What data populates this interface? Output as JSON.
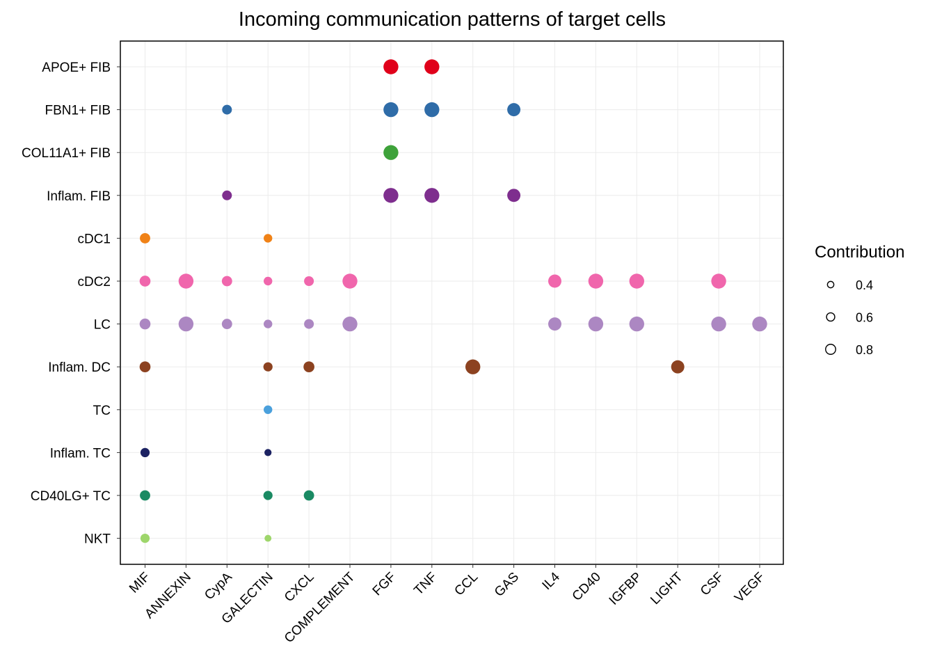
{
  "chart_data": {
    "type": "scatter",
    "title": "Incoming communication patterns of target cells",
    "x_categories": [
      "MIF",
      "ANNEXIN",
      "CypA",
      "GALECTIN",
      "CXCL",
      "COMPLEMENT",
      "FGF",
      "TNF",
      "CCL",
      "GAS",
      "IL4",
      "CD40",
      "IGFBP",
      "LIGHT",
      "CSF",
      "VEGF"
    ],
    "y_categories": [
      "APOE+ FIB",
      "FBN1+ FIB",
      "COL11A1+ FIB",
      "Inflam. FIB",
      "cDC1",
      "cDC2",
      "LC",
      "Inflam. DC",
      "TC",
      "Inflam. TC",
      "CD40LG+ TC",
      "NKT"
    ],
    "row_colors": {
      "APOE+ FIB": "#E0001A",
      "FBN1+ FIB": "#2F6CA8",
      "COL11A1+ FIB": "#3EA23A",
      "Inflam. FIB": "#7E2E8E",
      "cDC1": "#F08217",
      "cDC2": "#F066AC",
      "LC": "#AC87C2",
      "Inflam. DC": "#8C4220",
      "TC": "#4AA0DC",
      "Inflam. TC": "#1C2262",
      "CD40LG+ TC": "#1A8A63",
      "NKT": "#9ED66B"
    },
    "size_legend": {
      "title": "Contribution",
      "breaks": [
        0.4,
        0.6,
        0.8
      ],
      "labels": [
        "0.4",
        "0.6",
        "0.8"
      ]
    },
    "points": [
      {
        "x": "FGF",
        "y": "APOE+ FIB",
        "contribution": 1.0
      },
      {
        "x": "TNF",
        "y": "APOE+ FIB",
        "contribution": 1.0
      },
      {
        "x": "CypA",
        "y": "FBN1+ FIB",
        "contribution": 0.55
      },
      {
        "x": "FGF",
        "y": "FBN1+ FIB",
        "contribution": 1.0
      },
      {
        "x": "TNF",
        "y": "FBN1+ FIB",
        "contribution": 1.0
      },
      {
        "x": "GAS",
        "y": "FBN1+ FIB",
        "contribution": 0.85
      },
      {
        "x": "FGF",
        "y": "COL11A1+ FIB",
        "contribution": 1.0
      },
      {
        "x": "CypA",
        "y": "Inflam. FIB",
        "contribution": 0.55
      },
      {
        "x": "FGF",
        "y": "Inflam. FIB",
        "contribution": 1.0
      },
      {
        "x": "TNF",
        "y": "Inflam. FIB",
        "contribution": 1.0
      },
      {
        "x": "GAS",
        "y": "Inflam. FIB",
        "contribution": 0.85
      },
      {
        "x": "MIF",
        "y": "cDC1",
        "contribution": 0.6
      },
      {
        "x": "GALECTIN",
        "y": "cDC1",
        "contribution": 0.45
      },
      {
        "x": "MIF",
        "y": "cDC2",
        "contribution": 0.65
      },
      {
        "x": "ANNEXIN",
        "y": "cDC2",
        "contribution": 1.0
      },
      {
        "x": "CypA",
        "y": "cDC2",
        "contribution": 0.6
      },
      {
        "x": "GALECTIN",
        "y": "cDC2",
        "contribution": 0.45
      },
      {
        "x": "CXCL",
        "y": "cDC2",
        "contribution": 0.55
      },
      {
        "x": "COMPLEMENT",
        "y": "cDC2",
        "contribution": 1.0
      },
      {
        "x": "IL4",
        "y": "cDC2",
        "contribution": 0.85
      },
      {
        "x": "CD40",
        "y": "cDC2",
        "contribution": 1.0
      },
      {
        "x": "IGFBP",
        "y": "cDC2",
        "contribution": 1.0
      },
      {
        "x": "CSF",
        "y": "cDC2",
        "contribution": 1.0
      },
      {
        "x": "MIF",
        "y": "LC",
        "contribution": 0.65
      },
      {
        "x": "ANNEXIN",
        "y": "LC",
        "contribution": 1.0
      },
      {
        "x": "CypA",
        "y": "LC",
        "contribution": 0.6
      },
      {
        "x": "GALECTIN",
        "y": "LC",
        "contribution": 0.45
      },
      {
        "x": "CXCL",
        "y": "LC",
        "contribution": 0.55
      },
      {
        "x": "COMPLEMENT",
        "y": "LC",
        "contribution": 1.0
      },
      {
        "x": "IL4",
        "y": "LC",
        "contribution": 0.85
      },
      {
        "x": "CD40",
        "y": "LC",
        "contribution": 1.0
      },
      {
        "x": "IGFBP",
        "y": "LC",
        "contribution": 1.0
      },
      {
        "x": "CSF",
        "y": "LC",
        "contribution": 1.0
      },
      {
        "x": "VEGF",
        "y": "LC",
        "contribution": 1.0
      },
      {
        "x": "MIF",
        "y": "Inflam. DC",
        "contribution": 0.65
      },
      {
        "x": "GALECTIN",
        "y": "Inflam. DC",
        "contribution": 0.5
      },
      {
        "x": "CXCL",
        "y": "Inflam. DC",
        "contribution": 0.65
      },
      {
        "x": "CCL",
        "y": "Inflam. DC",
        "contribution": 1.0
      },
      {
        "x": "LIGHT",
        "y": "Inflam. DC",
        "contribution": 0.85
      },
      {
        "x": "GALECTIN",
        "y": "TC",
        "contribution": 0.45
      },
      {
        "x": "MIF",
        "y": "Inflam. TC",
        "contribution": 0.5
      },
      {
        "x": "GALECTIN",
        "y": "Inflam. TC",
        "contribution": 0.32
      },
      {
        "x": "MIF",
        "y": "CD40LG+ TC",
        "contribution": 0.6
      },
      {
        "x": "GALECTIN",
        "y": "CD40LG+ TC",
        "contribution": 0.5
      },
      {
        "x": "CXCL",
        "y": "CD40LG+ TC",
        "contribution": 0.6
      },
      {
        "x": "MIF",
        "y": "NKT",
        "contribution": 0.5
      },
      {
        "x": "GALECTIN",
        "y": "NKT",
        "contribution": 0.3
      }
    ]
  }
}
